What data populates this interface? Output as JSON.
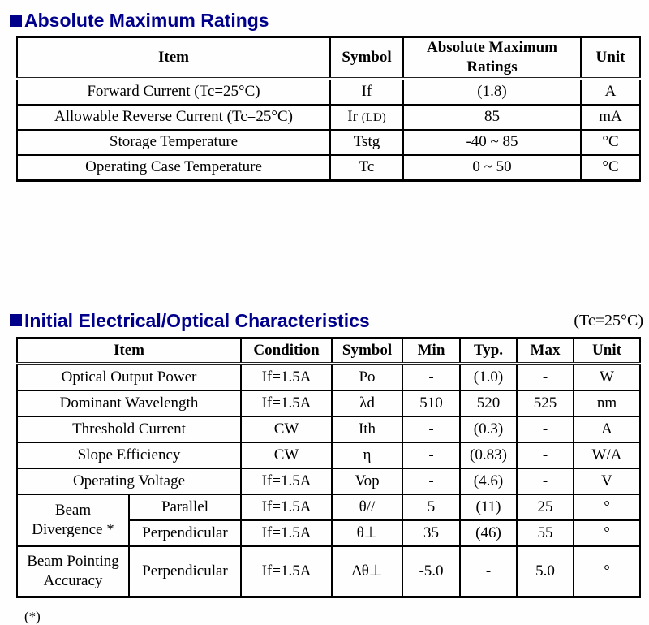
{
  "sections": {
    "abs_max": {
      "title": "Absolute Maximum Ratings"
    },
    "characteristics": {
      "title": "Initial Electrical/Optical Characteristics",
      "note": "(Tc=25°C)"
    }
  },
  "abs_max_table": {
    "headers": {
      "item": "Item",
      "symbol": "Symbol",
      "rating": "Absolute Maximum Ratings",
      "unit": "Unit"
    },
    "rows": [
      {
        "item": "Forward Current (Tc=25°C)",
        "symbol": "If",
        "rating": "(1.8)",
        "unit": "A"
      },
      {
        "item": "Allowable Reverse Current (Tc=25°C)",
        "symbol": "Ir",
        "symbol_note": "(LD)",
        "rating": "85",
        "unit": "mA"
      },
      {
        "item": "Storage Temperature",
        "symbol": "Tstg",
        "rating": "-40 ~ 85",
        "unit": "°C"
      },
      {
        "item": "Operating Case Temperature",
        "symbol": "Tc",
        "rating": "0 ~ 50",
        "unit": "°C"
      }
    ]
  },
  "characteristics_table": {
    "headers": {
      "item": "Item",
      "condition": "Condition",
      "symbol": "Symbol",
      "min": "Min",
      "typ": "Typ.",
      "max": "Max",
      "unit": "Unit"
    },
    "rows": [
      {
        "item": "Optical Output Power",
        "condition": "If=1.5A",
        "symbol": "Po",
        "min": "-",
        "typ": "(1.0)",
        "max": "-",
        "unit": "W"
      },
      {
        "item": "Dominant Wavelength",
        "condition": "If=1.5A",
        "symbol": "λd",
        "min": "510",
        "typ": "520",
        "max": "525",
        "unit": "nm"
      },
      {
        "item": "Threshold Current",
        "condition": "CW",
        "symbol": "Ith",
        "min": "-",
        "typ": "(0.3)",
        "max": "-",
        "unit": "A"
      },
      {
        "item": "Slope Efficiency",
        "condition": "CW",
        "symbol": "η",
        "min": "-",
        "typ": "(0.83)",
        "max": "-",
        "unit": "W/A"
      },
      {
        "item": "Operating Voltage",
        "condition": "If=1.5A",
        "symbol": "Vop",
        "min": "-",
        "typ": "(4.6)",
        "max": "-",
        "unit": "V"
      },
      {
        "item": "Beam Divergence *",
        "sub_item": "Parallel",
        "condition": "If=1.5A",
        "symbol": "θ//",
        "min": "5",
        "typ": "(11)",
        "max": "25",
        "unit": "°"
      },
      {
        "sub_item": "Perpendicular",
        "condition": "If=1.5A",
        "symbol": "θ⊥",
        "min": "35",
        "typ": "(46)",
        "max": "55",
        "unit": "°"
      },
      {
        "item": "Beam Pointing Accuracy",
        "sub_item": "Perpendicular",
        "condition": "If=1.5A",
        "symbol": "Δθ⊥",
        "min": "-5.0",
        "typ": "-",
        "max": "5.0",
        "unit": "°"
      }
    ]
  },
  "footnote": "(*)"
}
